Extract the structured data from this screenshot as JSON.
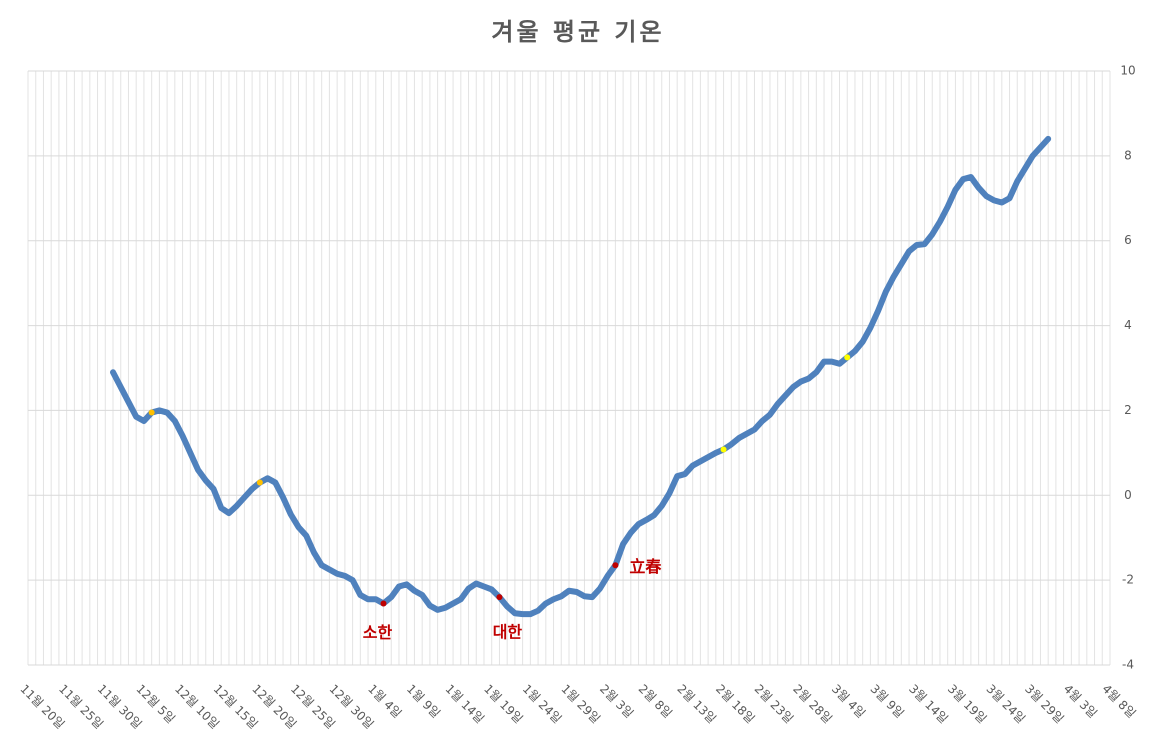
{
  "chart_data": {
    "type": "line",
    "title": "겨울 평균 기온",
    "categories": [
      "11월 20일",
      null,
      null,
      null,
      null,
      "11월 25일",
      null,
      null,
      null,
      null,
      "11월 30일",
      null,
      null,
      null,
      null,
      "12월 5일",
      null,
      null,
      null,
      null,
      "12월 10일",
      null,
      null,
      null,
      null,
      "12월 15일",
      null,
      null,
      null,
      null,
      "12월 20일",
      null,
      null,
      null,
      null,
      "12월 25일",
      null,
      null,
      null,
      null,
      "12월 30일",
      null,
      null,
      null,
      null,
      "1월 4일",
      null,
      null,
      null,
      null,
      "1월 9일",
      null,
      null,
      null,
      null,
      "1월 14일",
      null,
      null,
      null,
      null,
      "1월 19일",
      null,
      null,
      null,
      null,
      "1월 24일",
      null,
      null,
      null,
      null,
      "1월 29일",
      null,
      null,
      null,
      null,
      "2월 3일",
      null,
      null,
      null,
      null,
      "2월 8일",
      null,
      null,
      null,
      null,
      "2월 13일",
      null,
      null,
      null,
      null,
      "2월 18일",
      null,
      null,
      null,
      null,
      "2월 23일",
      null,
      null,
      null,
      null,
      "2월 28일",
      null,
      null,
      null,
      null,
      "3월 4일",
      null,
      null,
      null,
      null,
      "3월 9일",
      null,
      null,
      null,
      null,
      "3월 14일",
      null,
      null,
      null,
      null,
      "3월 19일",
      null,
      null,
      null,
      null,
      "3월 24일",
      null,
      null,
      null,
      null,
      "3월 29일",
      null,
      null,
      null,
      null,
      "4월 3일",
      null,
      null,
      null,
      null,
      "4월 8일"
    ],
    "values": [
      null,
      null,
      null,
      null,
      null,
      null,
      null,
      null,
      null,
      null,
      null,
      2.9,
      2.55,
      2.2,
      1.85,
      1.75,
      1.95,
      2.0,
      1.95,
      1.75,
      1.4,
      1.0,
      0.6,
      0.35,
      0.15,
      -0.3,
      -0.42,
      -0.25,
      -0.05,
      0.15,
      0.3,
      0.4,
      0.3,
      -0.05,
      -0.45,
      -0.75,
      -0.95,
      -1.35,
      -1.65,
      -1.75,
      -1.85,
      -1.9,
      -2.0,
      -2.35,
      -2.45,
      -2.45,
      -2.55,
      -2.4,
      -2.15,
      -2.1,
      -2.25,
      -2.35,
      -2.6,
      -2.7,
      -2.65,
      -2.55,
      -2.45,
      -2.2,
      -2.08,
      -2.15,
      -2.22,
      -2.4,
      -2.62,
      -2.78,
      -2.8,
      -2.8,
      -2.72,
      -2.55,
      -2.45,
      -2.38,
      -2.25,
      -2.28,
      -2.38,
      -2.4,
      -2.2,
      -1.9,
      -1.65,
      -1.15,
      -0.88,
      -0.68,
      -0.58,
      -0.47,
      -0.25,
      0.05,
      0.45,
      0.5,
      0.7,
      0.8,
      0.9,
      1.0,
      1.08,
      1.2,
      1.35,
      1.45,
      1.55,
      1.75,
      1.9,
      2.15,
      2.35,
      2.55,
      2.68,
      2.75,
      2.9,
      3.15,
      3.15,
      3.1,
      3.25,
      3.4,
      3.62,
      3.95,
      4.35,
      4.8,
      5.15,
      5.45,
      5.75,
      5.9,
      5.92,
      6.15,
      6.45,
      6.8,
      7.2,
      7.45,
      7.5,
      7.25,
      7.05,
      6.95,
      6.9,
      7.0,
      7.4,
      7.7,
      8.0,
      8.2,
      8.4,
      null,
      null,
      null,
      null,
      null,
      null,
      null,
      null
    ],
    "color": "#4f81bd",
    "ylim": [
      -4,
      10
    ],
    "yticks": [
      -4,
      -2,
      0,
      2,
      4,
      6,
      8,
      10
    ],
    "grid": true,
    "annotations": [
      {
        "text": "소한",
        "index": 46,
        "color": "#c00000"
      },
      {
        "text": "대한",
        "index": 61,
        "color": "#c00000"
      },
      {
        "text": "立春",
        "index": 76,
        "color": "#c00000"
      }
    ],
    "markers": [
      {
        "index": 16,
        "color": "#ffc000"
      },
      {
        "index": 30,
        "color": "#ffc000"
      },
      {
        "index": 90,
        "color": "#ffff00"
      },
      {
        "index": 106,
        "color": "#ffff00"
      }
    ]
  }
}
